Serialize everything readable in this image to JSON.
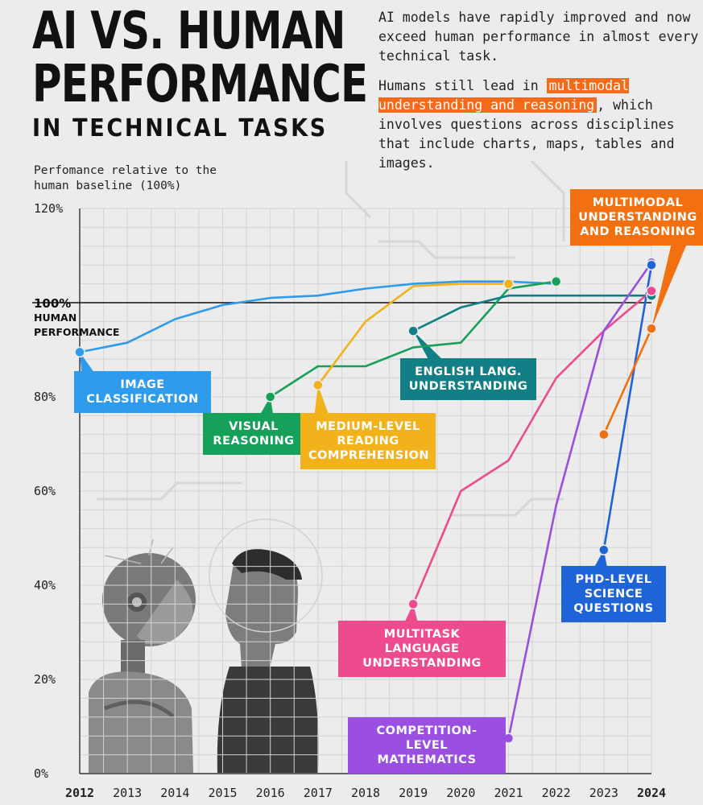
{
  "header": {
    "title_line1": "AI VS. HUMAN",
    "title_line2": "PERFORMANCE",
    "title_line3": "IN TECHNICAL TASKS"
  },
  "intro": {
    "p1": "AI models have rapidly improved and now exceed human performance in almost every technical task.",
    "p2_before": "Humans still lead in ",
    "p2_highlight": "multimodal understanding and reasoning",
    "p2_after": ", which involves questions across disciplines that include charts, maps, tables and images."
  },
  "baseline": {
    "value": "100%",
    "label_line1": "HUMAN",
    "label_line2": "PERFORMANCE"
  },
  "colors": {
    "background": "#ececec",
    "image_classification": "#2f9bec",
    "visual_reasoning": "#17a05a",
    "reading_comprehension": "#f2b21b",
    "english_understanding": "#127f86",
    "multitask_language": "#ee4b8e",
    "competition_math": "#9a4fe0",
    "phd_science": "#1f64d6",
    "multimodal": "#f2700f"
  },
  "chart_data": {
    "type": "line",
    "title": "AI VS. HUMAN PERFORMANCE IN TECHNICAL TASKS",
    "ylabel": "Perfomance relative to the human baseline (100%)",
    "xlabel": "",
    "ylim": [
      0,
      120
    ],
    "xlim": [
      2012,
      2024
    ],
    "y_ticks": [
      "0%",
      "20%",
      "40%",
      "60%",
      "80%",
      "100%",
      "120%"
    ],
    "x_ticks": [
      "2012",
      "2013",
      "2014",
      "2015",
      "2016",
      "2017",
      "2018",
      "2019",
      "2020",
      "2021",
      "2022",
      "2023",
      "2024"
    ],
    "grid": true,
    "series": [
      {
        "name": "IMAGE CLASSIFICATION",
        "key": "image_classification",
        "x": [
          2012,
          2013,
          2014,
          2015,
          2016,
          2017,
          2018,
          2019,
          2020,
          2021,
          2022
        ],
        "y": [
          89.5,
          91.5,
          96.5,
          99.5,
          101,
          101.5,
          103,
          104,
          104.5,
          104.5,
          104
        ],
        "marker_at": [
          2012
        ]
      },
      {
        "name": "VISUAL REASONING",
        "key": "visual_reasoning",
        "x": [
          2016,
          2017,
          2018,
          2019,
          2020,
          2021,
          2022
        ],
        "y": [
          80,
          86.5,
          86.5,
          90.5,
          91.5,
          103,
          104.5
        ],
        "marker_at": [
          2016,
          2022
        ]
      },
      {
        "name": "MEDIUM-LEVEL READING COMPREHENSION",
        "key": "reading_comprehension",
        "x": [
          2017,
          2018,
          2019,
          2020,
          2021
        ],
        "y": [
          82.5,
          96,
          103.5,
          104,
          104
        ],
        "marker_at": [
          2017,
          2021
        ]
      },
      {
        "name": "ENGLISH LANG. UNDERSTANDING",
        "key": "english_understanding",
        "x": [
          2019,
          2020,
          2021,
          2022,
          2023,
          2024
        ],
        "y": [
          94,
          99,
          101.5,
          101.5,
          101.5,
          101.5
        ],
        "marker_at": [
          2019,
          2024
        ]
      },
      {
        "name": "MULTITASK LANGUAGE UNDERSTANDING",
        "key": "multitask_language",
        "x": [
          2019,
          2020,
          2021,
          2022,
          2023,
          2024
        ],
        "y": [
          36,
          60,
          66.5,
          84,
          94,
          102.5
        ],
        "marker_at": [
          2019,
          2024
        ]
      },
      {
        "name": "COMPETITION-LEVEL MATHEMATICS",
        "key": "competition_math",
        "x": [
          2021,
          2022,
          2023,
          2024
        ],
        "y": [
          7.5,
          57,
          94,
          108.5
        ],
        "marker_at": [
          2021,
          2024
        ]
      },
      {
        "name": "PHD-LEVEL SCIENCE QUESTIONS",
        "key": "phd_science",
        "x": [
          2023,
          2024
        ],
        "y": [
          47.5,
          108
        ],
        "marker_at": [
          2023,
          2024
        ]
      },
      {
        "name": "MULTIMODAL UNDERSTANDING AND REASONING",
        "key": "multimodal",
        "x": [
          2023,
          2024
        ],
        "y": [
          72,
          94.5
        ],
        "marker_at": [
          2023,
          2024
        ]
      }
    ]
  },
  "callouts": {
    "image_classification": "IMAGE\nCLASSIFICATION",
    "visual_reasoning": "VISUAL\nREASONING",
    "reading_comprehension": "MEDIUM-LEVEL\nREADING\nCOMPREHENSION",
    "english_understanding": "ENGLISH LANG.\nUNDERSTANDING",
    "multitask_language": "MULTITASK LANGUAGE\nUNDERSTANDING",
    "competition_math": "COMPETITION-LEVEL\nMATHEMATICS",
    "phd_science": "PHD-LEVEL\nSCIENCE\nQUESTIONS",
    "multimodal": "MULTIMODAL\nUNDERSTANDING\nAND REASONING"
  }
}
